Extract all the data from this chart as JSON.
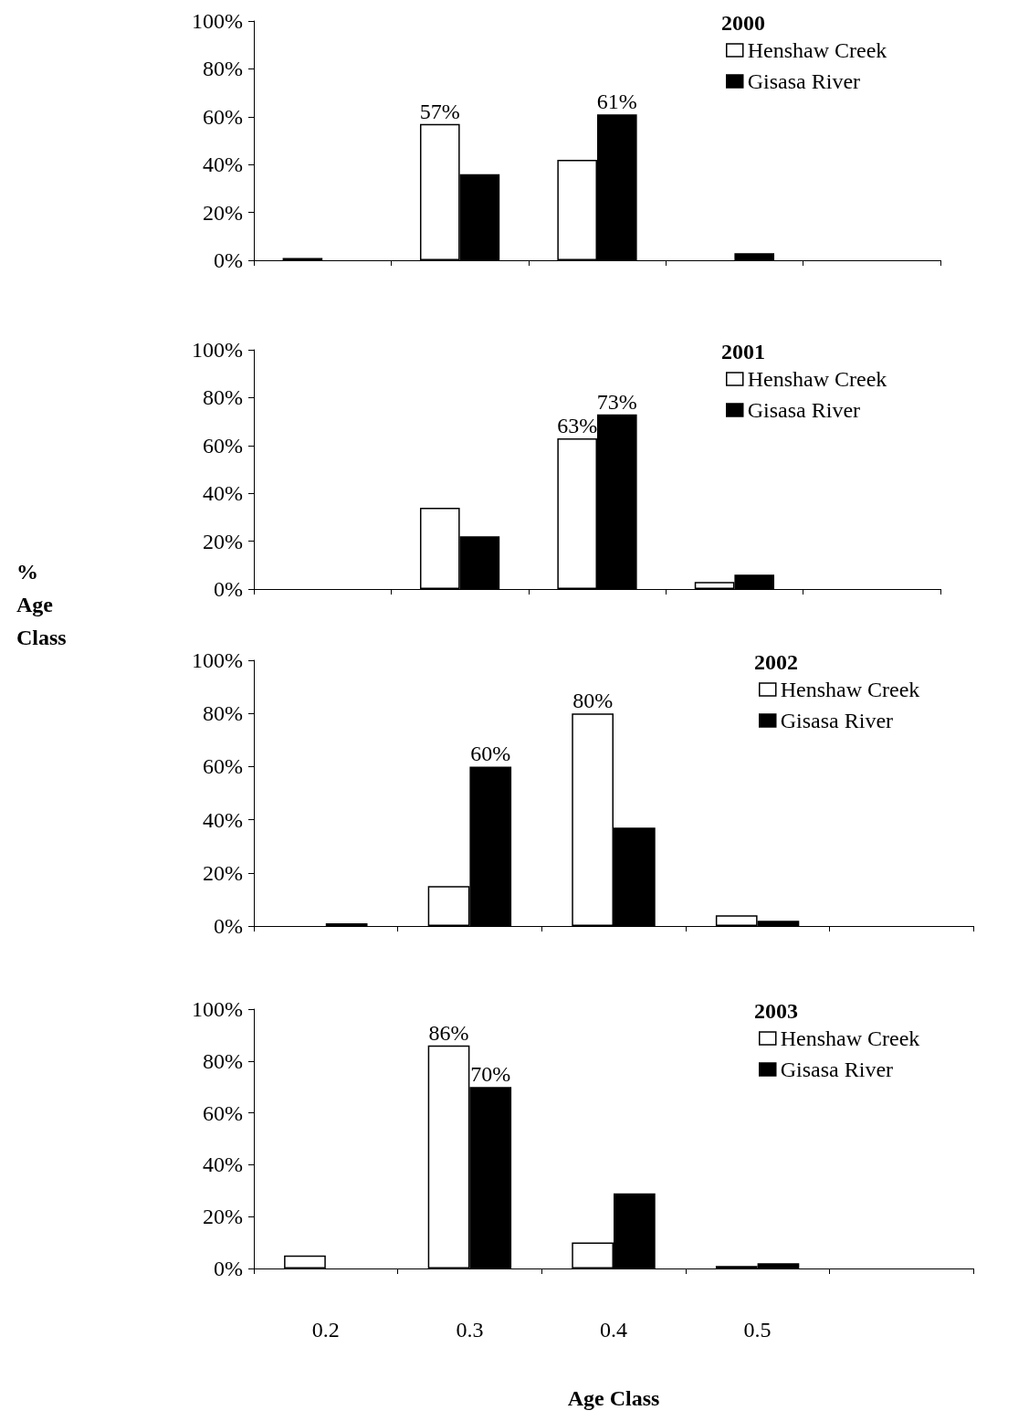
{
  "chart_data": [
    {
      "type": "bar",
      "title": "2000",
      "categories": [
        "0.2",
        "0.3",
        "0.4",
        "0.5",
        null
      ],
      "series": [
        {
          "name": "Henshaw Creek",
          "color": "#ffffff",
          "values": [
            1,
            57,
            42,
            0,
            0
          ],
          "value_labels": [
            null,
            "57%",
            null,
            null,
            null
          ]
        },
        {
          "name": "Gisasa River",
          "color": "#000000",
          "values": [
            0,
            36,
            61,
            3,
            0
          ],
          "value_labels": [
            null,
            null,
            "61%",
            null,
            null
          ]
        }
      ],
      "ylim": [
        0,
        100
      ],
      "yticks": [
        {
          "value": 0,
          "label": "0%"
        },
        {
          "value": 20,
          "label": "20%"
        },
        {
          "value": 40,
          "label": "40%"
        },
        {
          "value": 60,
          "label": "60%"
        },
        {
          "value": 80,
          "label": "80%"
        },
        {
          "value": 100,
          "label": "100%"
        }
      ],
      "tick_labels": "y",
      "grid": false,
      "legend": "top right"
    },
    {
      "type": "bar",
      "title": "2001",
      "ylabel": "% Age Class",
      "categories": [
        "0.2",
        "0.3",
        "0.4",
        "0.5",
        null
      ],
      "series": [
        {
          "name": "Henshaw Creek",
          "color": "#ffffff",
          "values": [
            0,
            34,
            63,
            3,
            0
          ],
          "value_labels": [
            null,
            null,
            "63%",
            null,
            null
          ]
        },
        {
          "name": "Gisasa River",
          "color": "#000000",
          "values": [
            0,
            22,
            73,
            6,
            0
          ],
          "value_labels": [
            null,
            null,
            "73%",
            null,
            null
          ]
        }
      ],
      "ylim": [
        0,
        100
      ],
      "yticks": [
        {
          "value": 0,
          "label": "0%"
        },
        {
          "value": 20,
          "label": "20%"
        },
        {
          "value": 40,
          "label": "40%"
        },
        {
          "value": 60,
          "label": "60%"
        },
        {
          "value": 80,
          "label": "80%"
        },
        {
          "value": 100,
          "label": "100%"
        }
      ],
      "tick_labels": "y",
      "grid": false,
      "legend": "top right"
    },
    {
      "type": "bar",
      "title": "2002",
      "categories": [
        "0.2",
        "0.3",
        "0.4",
        "0.5",
        null
      ],
      "series": [
        {
          "name": "Henshaw Creek",
          "color": "#ffffff",
          "values": [
            0,
            15,
            80,
            4,
            0
          ],
          "value_labels": [
            null,
            null,
            "80%",
            null,
            null
          ]
        },
        {
          "name": "Gisasa River",
          "color": "#000000",
          "values": [
            1,
            60,
            37,
            2,
            0
          ],
          "value_labels": [
            null,
            "60%",
            null,
            null,
            null
          ]
        }
      ],
      "ylim": [
        0,
        100
      ],
      "yticks": [
        {
          "value": 0,
          "label": "0%"
        },
        {
          "value": 20,
          "label": "20%"
        },
        {
          "value": 40,
          "label": "40%"
        },
        {
          "value": 60,
          "label": "60%"
        },
        {
          "value": 80,
          "label": "80%"
        },
        {
          "value": 100,
          "label": "100%"
        }
      ],
      "tick_labels": "y",
      "grid": false,
      "legend": "top right"
    },
    {
      "type": "bar",
      "title": "2003",
      "xlabel": "Age Class",
      "categories": [
        "0.2",
        "0.3",
        "0.4",
        "0.5",
        null
      ],
      "series": [
        {
          "name": "Henshaw Creek",
          "color": "#ffffff",
          "values": [
            5,
            86,
            10,
            1,
            0
          ],
          "value_labels": [
            null,
            "86%",
            null,
            null,
            null
          ]
        },
        {
          "name": "Gisasa River",
          "color": "#000000",
          "values": [
            0,
            70,
            29,
            2,
            0
          ],
          "value_labels": [
            null,
            "70%",
            null,
            null,
            null
          ]
        }
      ],
      "ylim": [
        0,
        100
      ],
      "yticks": [
        {
          "value": 0,
          "label": "0%"
        },
        {
          "value": 20,
          "label": "20%"
        },
        {
          "value": 40,
          "label": "40%"
        },
        {
          "value": 60,
          "label": "60%"
        },
        {
          "value": 80,
          "label": "80%"
        },
        {
          "value": 100,
          "label": "100%"
        }
      ],
      "grid": false,
      "legend": "top right"
    }
  ]
}
